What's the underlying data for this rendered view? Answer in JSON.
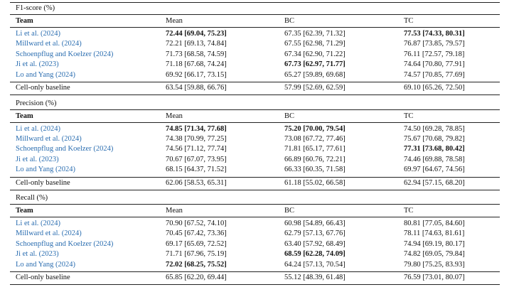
{
  "sections": [
    {
      "title": "F1-score (%)",
      "header": [
        "Team",
        "Mean",
        "BC",
        "TC"
      ],
      "rows": [
        [
          "Li et al. (2024)",
          "72.44 [69.04, 75.23]",
          "67.35 [62.39, 71.32]",
          "77.53 [74.33, 80.31]"
        ],
        [
          "Millward et al. (2024)",
          "72.21 [69.13, 74.84]",
          "67.55 [62.98, 71.29]",
          "76.87 [73.85, 79.57]"
        ],
        [
          "Schoenpflug and Koelzer (2024)",
          "71.73 [68.58, 74.59]",
          "67.34 [62.90, 71.22]",
          "76.11 [72.57, 79.18]"
        ],
        [
          "Ji et al. (2023)",
          "71.18 [67.68, 74.24]",
          "67.73 [62.97, 71.77]",
          "74.64 [70.80, 77.91]"
        ],
        [
          "Lo and Yang (2024)",
          "69.92 [66.17, 73.15]",
          "65.27 [59.89, 69.68]",
          "74.57 [70.85, 77.69]"
        ]
      ],
      "bold": [
        [
          1,
          3
        ],
        [],
        [],
        [
          2
        ],
        []
      ],
      "baseline": [
        "Cell-only baseline",
        "63.54 [59.88, 66.76]",
        "57.99 [52.69, 62.59]",
        "69.10 [65.26, 72.50]"
      ]
    },
    {
      "title": "Precision (%)",
      "header": [
        "Team",
        "Mean",
        "BC",
        "TC"
      ],
      "rows": [
        [
          "Li et al. (2024)",
          "74.85 [71.34, 77.68]",
          "75.20 [70.00, 79.54]",
          "74.50 [69.28, 78.85]"
        ],
        [
          "Millward et al. (2024)",
          "74.38 [70.99, 77.25]",
          "73.08 [67.72, 77.46]",
          "75.67 [70.68, 79.82]"
        ],
        [
          "Schoenpflug and Koelzer (2024)",
          "74.56 [71.12, 77.74]",
          "71.81 [65.17, 77.61]",
          "77.31 [73.68, 80.42]"
        ],
        [
          "Ji et al. (2023)",
          "70.67 [67.07, 73.95]",
          "66.89 [60.76, 72.21]",
          "74.46 [69.88, 78.58]"
        ],
        [
          "Lo and Yang (2024)",
          "68.15 [64.37, 71.52]",
          "66.33 [60.35, 71.58]",
          "69.97 [64.67, 74.56]"
        ]
      ],
      "bold": [
        [
          1,
          2
        ],
        [],
        [
          3
        ],
        [],
        []
      ],
      "baseline": [
        "Cell-only baseline",
        "62.06 [58.53, 65.31]",
        "61.18 [55.02, 66.58]",
        "62.94 [57.15, 68.20]"
      ]
    },
    {
      "title": "Recall (%)",
      "header": [
        "Team",
        "Mean",
        "BC",
        "TC"
      ],
      "rows": [
        [
          "Li et al. (2024)",
          "70.90 [67.52, 74.10]",
          "60.98 [54.89, 66.43]",
          "80.81 [77.05, 84.60]"
        ],
        [
          "Millward et al. (2024)",
          "70.45 [67.42, 73.36]",
          "62.79 [57.13, 67.76]",
          "78.11 [74.63, 81.61]"
        ],
        [
          "Schoenpflug and Koelzer (2024)",
          "69.17 [65.69, 72.52]",
          "63.40 [57.92, 68.49]",
          "74.94 [69.19, 80.17]"
        ],
        [
          "Ji et al. (2023)",
          "71.71 [67.96, 75.19]",
          "68.59 [62.28, 74.09]",
          "74.82 [69.05, 79.84]"
        ],
        [
          "Lo and Yang (2024)",
          "72.02 [68.25, 75.52]",
          "64.24 [57.13, 70.54]",
          "79.80 [75.25, 83.93]"
        ]
      ],
      "bold": [
        [],
        [],
        [],
        [
          2
        ],
        [
          1
        ]
      ],
      "baseline": [
        "Cell-only baseline",
        "65.85 [62.20, 69.44]",
        "55.12 [48.39, 61.48]",
        "76.59 [73.01, 80.07]"
      ]
    }
  ]
}
